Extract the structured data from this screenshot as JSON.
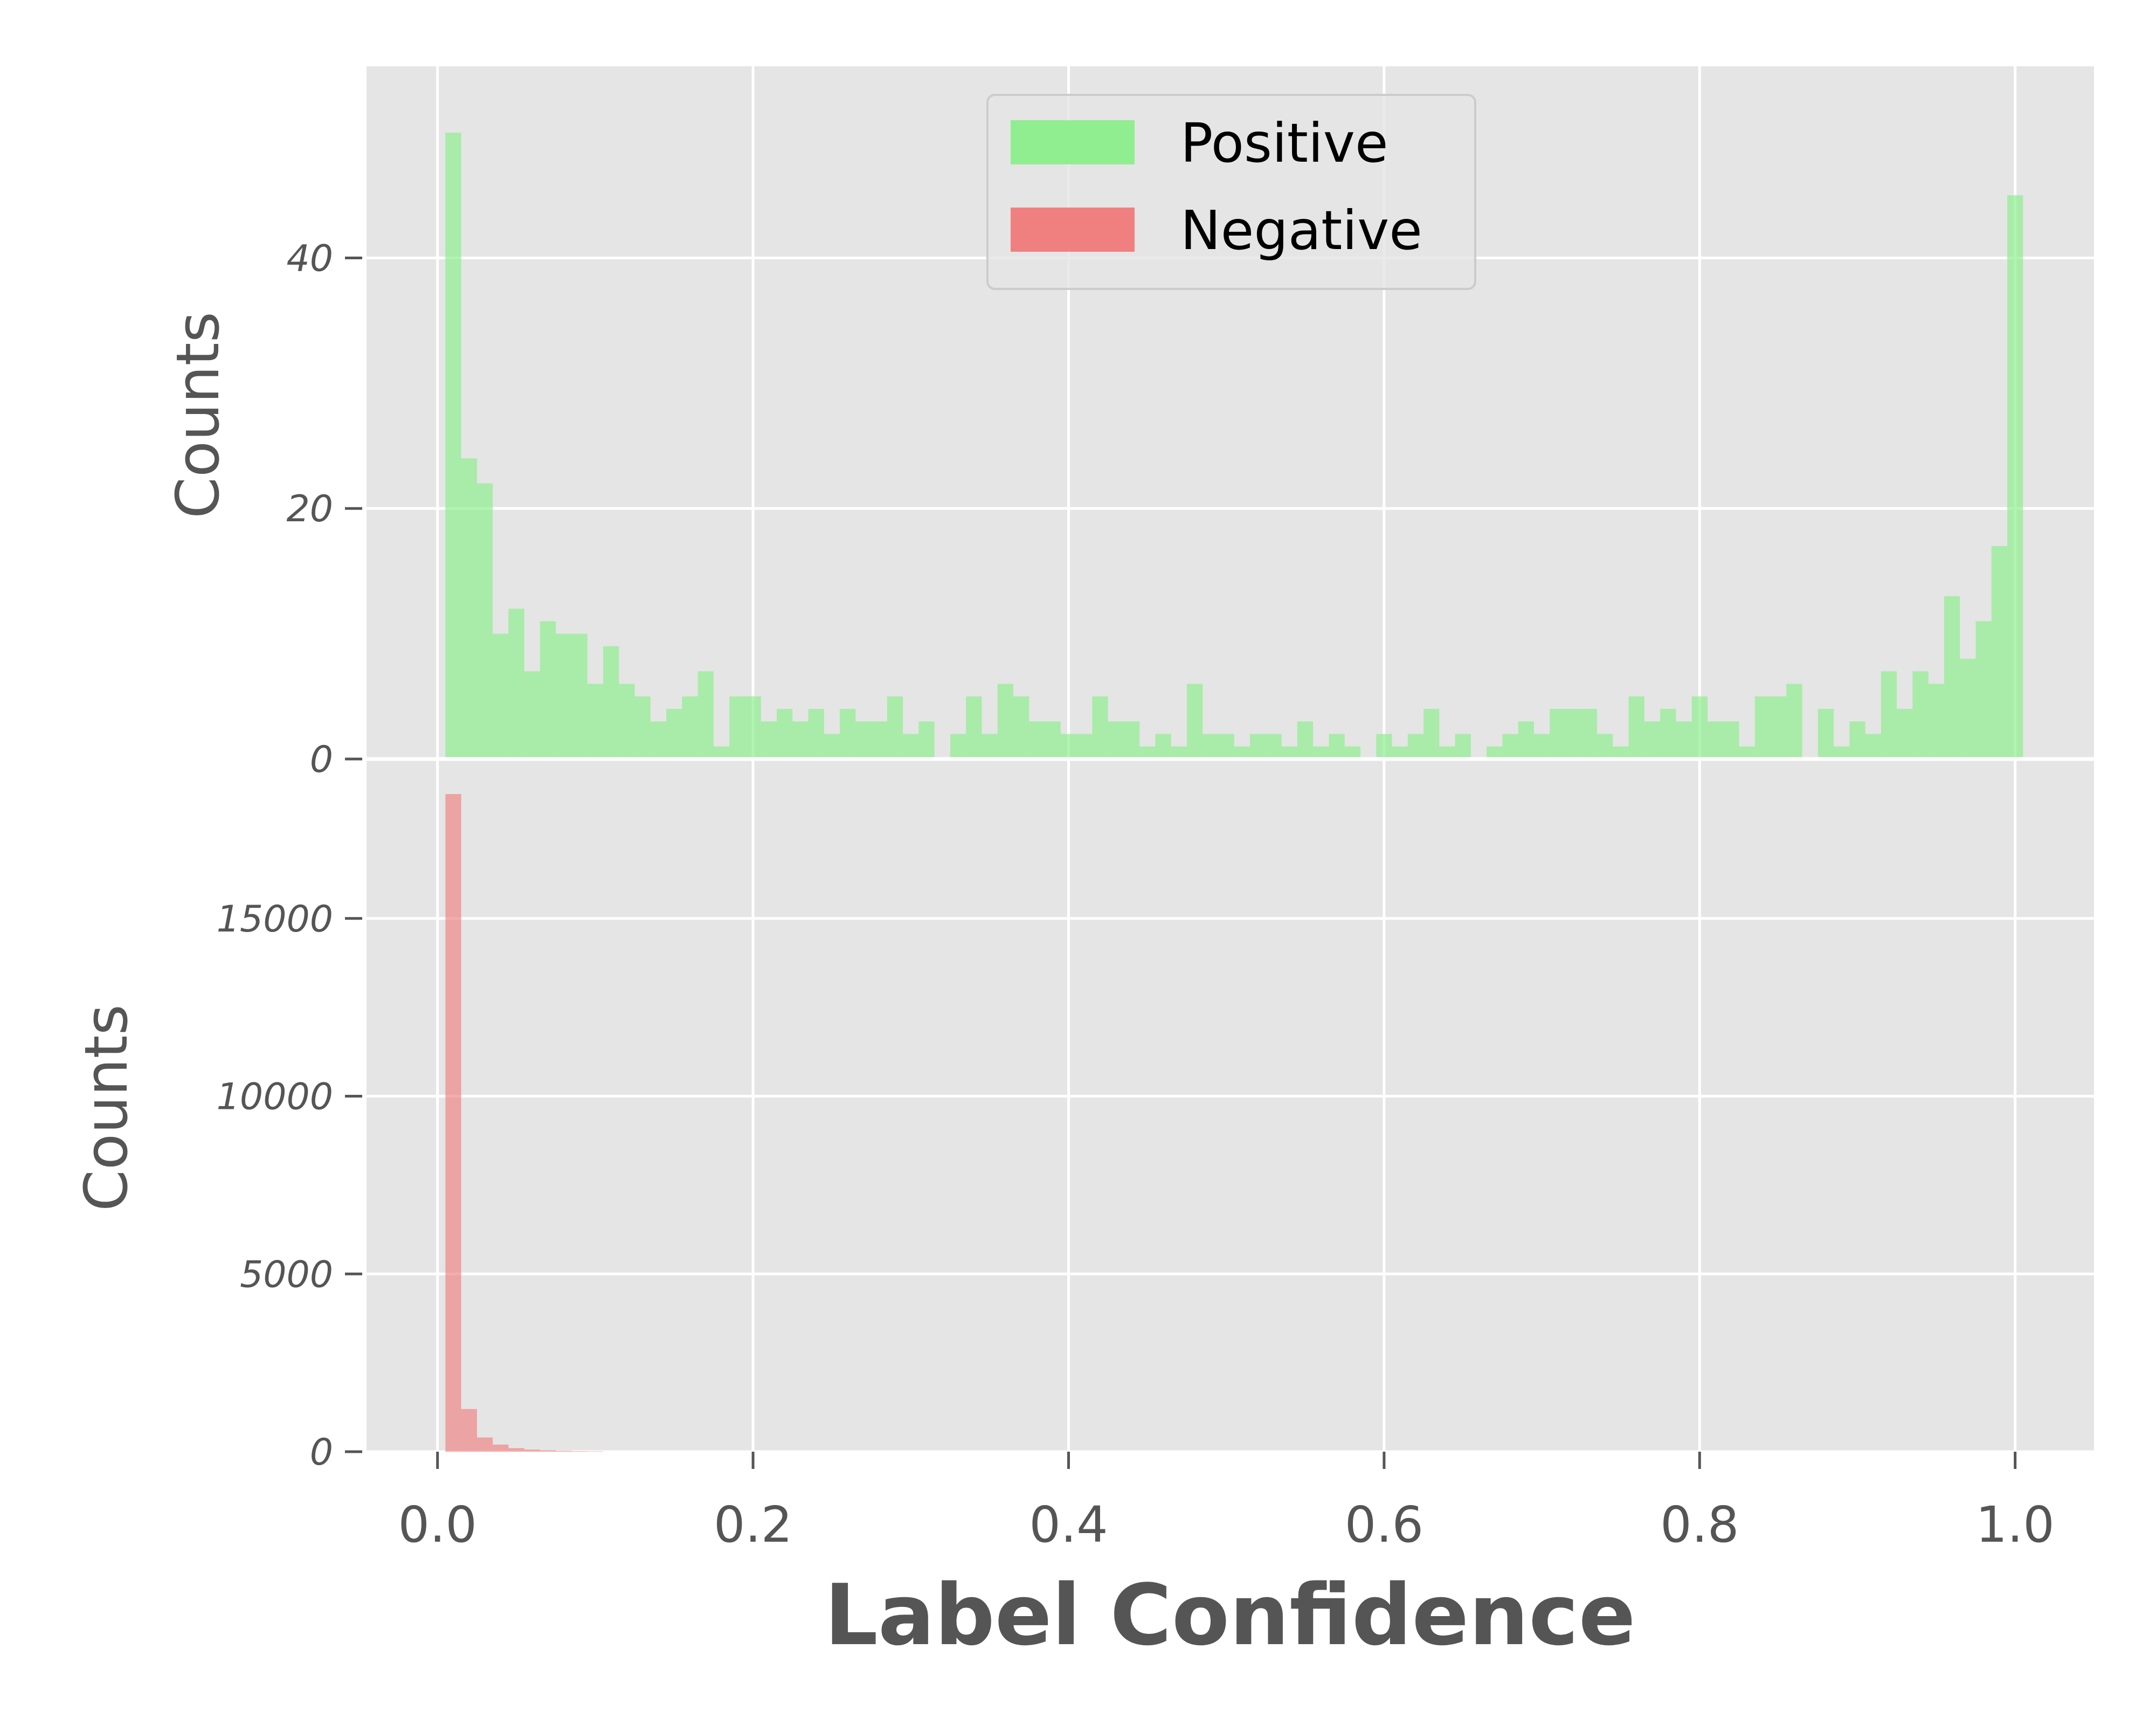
{
  "chart_data": [
    {
      "type": "bar",
      "panel": "top",
      "ylabel": "Counts",
      "ylim": [
        0,
        52.5
      ],
      "xlim": [
        -0.045,
        1.05
      ],
      "yticks": [
        "0",
        "20",
        "40"
      ],
      "ytick_values": [
        0,
        20,
        40
      ],
      "bin_start": 0.005,
      "bin_width": 0.01,
      "series": [
        {
          "name": "Positive",
          "color": "#90ee90",
          "values": [
            50,
            24,
            22,
            10,
            12,
            7,
            11,
            10,
            10,
            6,
            9,
            6,
            5,
            3,
            4,
            5,
            7,
            1,
            5,
            5,
            3,
            4,
            3,
            4,
            2,
            4,
            3,
            3,
            5,
            2,
            3,
            0,
            2,
            5,
            2,
            6,
            5,
            3,
            3,
            2,
            2,
            5,
            3,
            3,
            1,
            2,
            1,
            6,
            2,
            2,
            1,
            2,
            2,
            1,
            3,
            1,
            2,
            1,
            0,
            2,
            1,
            2,
            4,
            1,
            2,
            0,
            1,
            2,
            3,
            2,
            4,
            4,
            4,
            2,
            1,
            5,
            3,
            4,
            3,
            5,
            3,
            3,
            1,
            5,
            5,
            6,
            0,
            4,
            1,
            3,
            2,
            7,
            4,
            7,
            6,
            13,
            8,
            11,
            17,
            45
          ]
        }
      ]
    },
    {
      "type": "bar",
      "panel": "bottom",
      "ylabel": "Counts",
      "xlabel": "Label Confidence",
      "ylim": [
        0,
        18500
      ],
      "xlim": [
        -0.045,
        1.05
      ],
      "yticks": [
        "0",
        "5000",
        "10000",
        "15000"
      ],
      "ytick_values": [
        0,
        5000,
        10000,
        15000
      ],
      "xticks": [
        "0.0",
        "0.2",
        "0.4",
        "0.6",
        "0.8",
        "1.0"
      ],
      "xtick_values": [
        0.0,
        0.2,
        0.4,
        0.6,
        0.8,
        1.0
      ],
      "bin_start": 0.005,
      "bin_width": 0.01,
      "series": [
        {
          "name": "Negative",
          "color": "#f08080",
          "values": [
            18500,
            1200,
            400,
            200,
            100,
            60,
            40,
            25,
            15,
            10
          ]
        }
      ]
    }
  ],
  "legend": {
    "items": [
      {
        "label": "Positive",
        "color": "#90ee90"
      },
      {
        "label": "Negative",
        "color": "#f08080"
      }
    ],
    "placement": "top-center"
  }
}
